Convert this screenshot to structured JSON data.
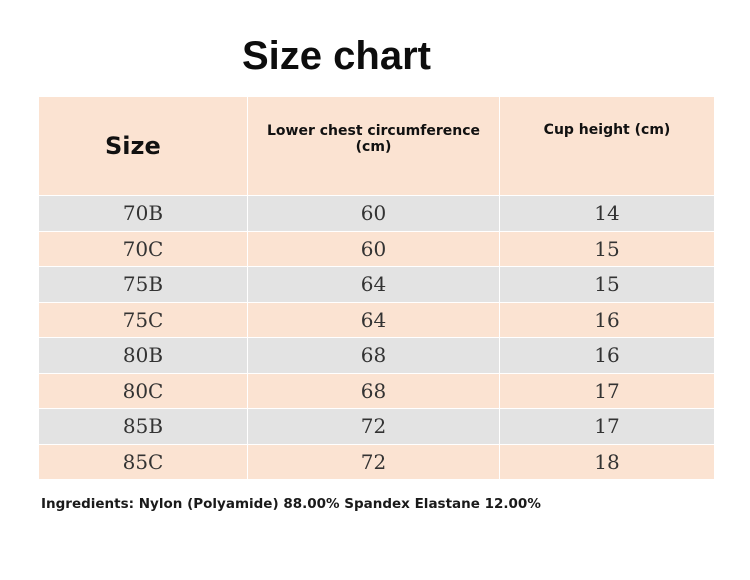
{
  "title": "Size chart",
  "table": {
    "headers": [
      "Size",
      "Lower chest circumference (cm)",
      "Cup height (cm)"
    ],
    "rows": [
      [
        "70B",
        "60",
        "14"
      ],
      [
        "70C",
        "60",
        "15"
      ],
      [
        "75B",
        "64",
        "15"
      ],
      [
        "75C",
        "64",
        "16"
      ],
      [
        "80B",
        "68",
        "16"
      ],
      [
        "80C",
        "68",
        "17"
      ],
      [
        "85B",
        "72",
        "17"
      ],
      [
        "85C",
        "72",
        "18"
      ]
    ]
  },
  "ingredients": "Ingredients: Nylon (Polyamide) 88.00% Spandex Elastane 12.00%",
  "colors": {
    "header_background": "#fbe3d2",
    "row_gray": "#e3e3e3",
    "row_peach": "#fbe3d2"
  }
}
